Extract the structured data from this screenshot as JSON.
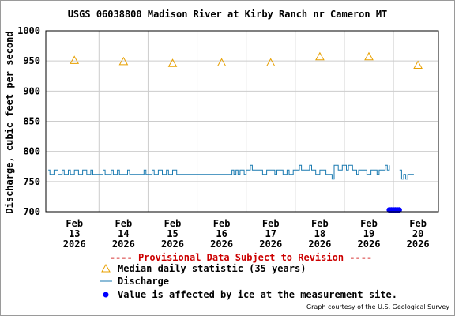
{
  "chart_data": {
    "type": "line",
    "title": "USGS 06038800 Madison River at Kirby Ranch nr Cameron MT",
    "ylabel": "Discharge, cubic feet per second",
    "xlabel": "",
    "ylim": [
      700,
      1000
    ],
    "y_ticks": [
      "700",
      "750",
      "800",
      "850",
      "900",
      "950",
      "1000"
    ],
    "x_ticks": [
      {
        "month": "Feb",
        "day": "13",
        "year": "2026"
      },
      {
        "month": "Feb",
        "day": "14",
        "year": "2026"
      },
      {
        "month": "Feb",
        "day": "15",
        "year": "2026"
      },
      {
        "month": "Feb",
        "day": "16",
        "year": "2026"
      },
      {
        "month": "Feb",
        "day": "17",
        "year": "2026"
      },
      {
        "month": "Feb",
        "day": "18",
        "year": "2026"
      },
      {
        "month": "Feb",
        "day": "19",
        "year": "2026"
      },
      {
        "month": "Feb",
        "day": "20",
        "year": "2026"
      }
    ],
    "grid": true,
    "colors": {
      "median": "#e8a000",
      "discharge": "#1a7ab0",
      "ice": "#0000ff",
      "grid": "#cccccc",
      "provisional": "#cc0000"
    },
    "series": [
      {
        "name": "Median daily statistic (35 years)",
        "marker": "triangle",
        "x": [
          "2026-02-13",
          "2026-02-14",
          "2026-02-15",
          "2026-02-16",
          "2026-02-17",
          "2026-02-18",
          "2026-02-19",
          "2026-02-20"
        ],
        "values": [
          951,
          949,
          946,
          947,
          947,
          957,
          957,
          943
        ]
      },
      {
        "name": "Discharge",
        "marker": "line",
        "segments": [
          [
            [
              "2026-02-12 23:15",
              769
            ],
            [
              "2026-02-13 00:00",
              762
            ],
            [
              "2026-02-13 02:00",
              769
            ],
            [
              "2026-02-13 04:00",
              762
            ],
            [
              "2026-02-13 06:00",
              769
            ],
            [
              "2026-02-13 07:00",
              762
            ],
            [
              "2026-02-13 09:00",
              769
            ],
            [
              "2026-02-13 10:00",
              762
            ],
            [
              "2026-02-13 12:00",
              769
            ],
            [
              "2026-02-13 14:00",
              762
            ],
            [
              "2026-02-13 16:00",
              769
            ],
            [
              "2026-02-13 18:00",
              762
            ],
            [
              "2026-02-13 20:00",
              769
            ],
            [
              "2026-02-13 21:00",
              762
            ],
            [
              "2026-02-14 00:00",
              762
            ],
            [
              "2026-02-14 02:00",
              769
            ],
            [
              "2026-02-14 03:00",
              762
            ],
            [
              "2026-02-14 06:00",
              769
            ],
            [
              "2026-02-14 07:00",
              762
            ],
            [
              "2026-02-14 09:00",
              769
            ],
            [
              "2026-02-14 10:00",
              762
            ],
            [
              "2026-02-14 14:00",
              769
            ],
            [
              "2026-02-14 15:00",
              762
            ],
            [
              "2026-02-14 18:00",
              762
            ],
            [
              "2026-02-14 22:00",
              769
            ],
            [
              "2026-02-14 23:00",
              762
            ],
            [
              "2026-02-15 02:00",
              769
            ],
            [
              "2026-02-15 03:00",
              762
            ],
            [
              "2026-02-15 05:00",
              769
            ],
            [
              "2026-02-15 07:00",
              762
            ],
            [
              "2026-02-15 09:00",
              769
            ],
            [
              "2026-02-15 10:00",
              762
            ],
            [
              "2026-02-15 12:00",
              769
            ],
            [
              "2026-02-15 14:00",
              762
            ],
            [
              "2026-02-16 00:00",
              762
            ],
            [
              "2026-02-16 12:00",
              762
            ],
            [
              "2026-02-16 16:00",
              762
            ],
            [
              "2026-02-16 17:00",
              769
            ],
            [
              "2026-02-16 18:00",
              762
            ],
            [
              "2026-02-16 19:00",
              769
            ],
            [
              "2026-02-16 20:00",
              762
            ],
            [
              "2026-02-16 21:00",
              769
            ],
            [
              "2026-02-16 23:00",
              762
            ],
            [
              "2026-02-17 00:00",
              769
            ],
            [
              "2026-02-17 01:00",
              769
            ],
            [
              "2026-02-17 02:00",
              777
            ],
            [
              "2026-02-17 03:00",
              769
            ],
            [
              "2026-02-17 06:00",
              769
            ],
            [
              "2026-02-17 08:00",
              762
            ],
            [
              "2026-02-17 10:00",
              769
            ],
            [
              "2026-02-17 12:00",
              769
            ],
            [
              "2026-02-17 14:00",
              762
            ],
            [
              "2026-02-17 15:00",
              769
            ],
            [
              "2026-02-17 17:00",
              769
            ],
            [
              "2026-02-17 18:00",
              762
            ],
            [
              "2026-02-17 20:00",
              769
            ],
            [
              "2026-02-17 21:00",
              762
            ],
            [
              "2026-02-17 23:00",
              769
            ],
            [
              "2026-02-18 00:00",
              769
            ],
            [
              "2026-02-18 02:00",
              777
            ],
            [
              "2026-02-18 03:00",
              769
            ],
            [
              "2026-02-18 06:00",
              769
            ],
            [
              "2026-02-18 07:00",
              777
            ],
            [
              "2026-02-18 08:00",
              769
            ],
            [
              "2026-02-18 10:00",
              762
            ],
            [
              "2026-02-18 12:00",
              769
            ],
            [
              "2026-02-18 14:00",
              769
            ],
            [
              "2026-02-18 15:00",
              762
            ],
            [
              "2026-02-18 17:00",
              762
            ],
            [
              "2026-02-18 18:00",
              754
            ],
            [
              "2026-02-18 19:00",
              777
            ],
            [
              "2026-02-18 21:00",
              769
            ],
            [
              "2026-02-18 23:00",
              777
            ],
            [
              "2026-02-19 01:00",
              769
            ],
            [
              "2026-02-19 02:00",
              777
            ],
            [
              "2026-02-19 04:00",
              769
            ],
            [
              "2026-02-19 06:00",
              762
            ],
            [
              "2026-02-19 07:00",
              769
            ],
            [
              "2026-02-19 09:00",
              769
            ],
            [
              "2026-02-19 11:00",
              762
            ],
            [
              "2026-02-19 13:00",
              769
            ],
            [
              "2026-02-19 15:00",
              769
            ],
            [
              "2026-02-19 16:00",
              762
            ],
            [
              "2026-02-19 17:00",
              769
            ],
            [
              "2026-02-19 19:00",
              769
            ],
            [
              "2026-02-19 20:00",
              777
            ],
            [
              "2026-02-19 21:00",
              769
            ],
            [
              "2026-02-19 22:00",
              777
            ]
          ],
          [
            [
              "2026-02-20 03:00",
              769
            ],
            [
              "2026-02-20 04:00",
              754
            ],
            [
              "2026-02-20 05:00",
              762
            ],
            [
              "2026-02-20 06:00",
              754
            ],
            [
              "2026-02-20 07:00",
              762
            ],
            [
              "2026-02-20 10:00",
              762
            ]
          ]
        ]
      }
    ],
    "ice_affected": {
      "name": "Value is affected by ice at the measurement site.",
      "marker": "dot",
      "x_start": "2026-02-19 22:00",
      "x_end": "2026-02-20 03:00",
      "value": 703
    },
    "provisional_notice": "---- Provisional Data Subject to Revision ----",
    "credit": "Graph courtesy of the U.S. Geological Survey"
  }
}
